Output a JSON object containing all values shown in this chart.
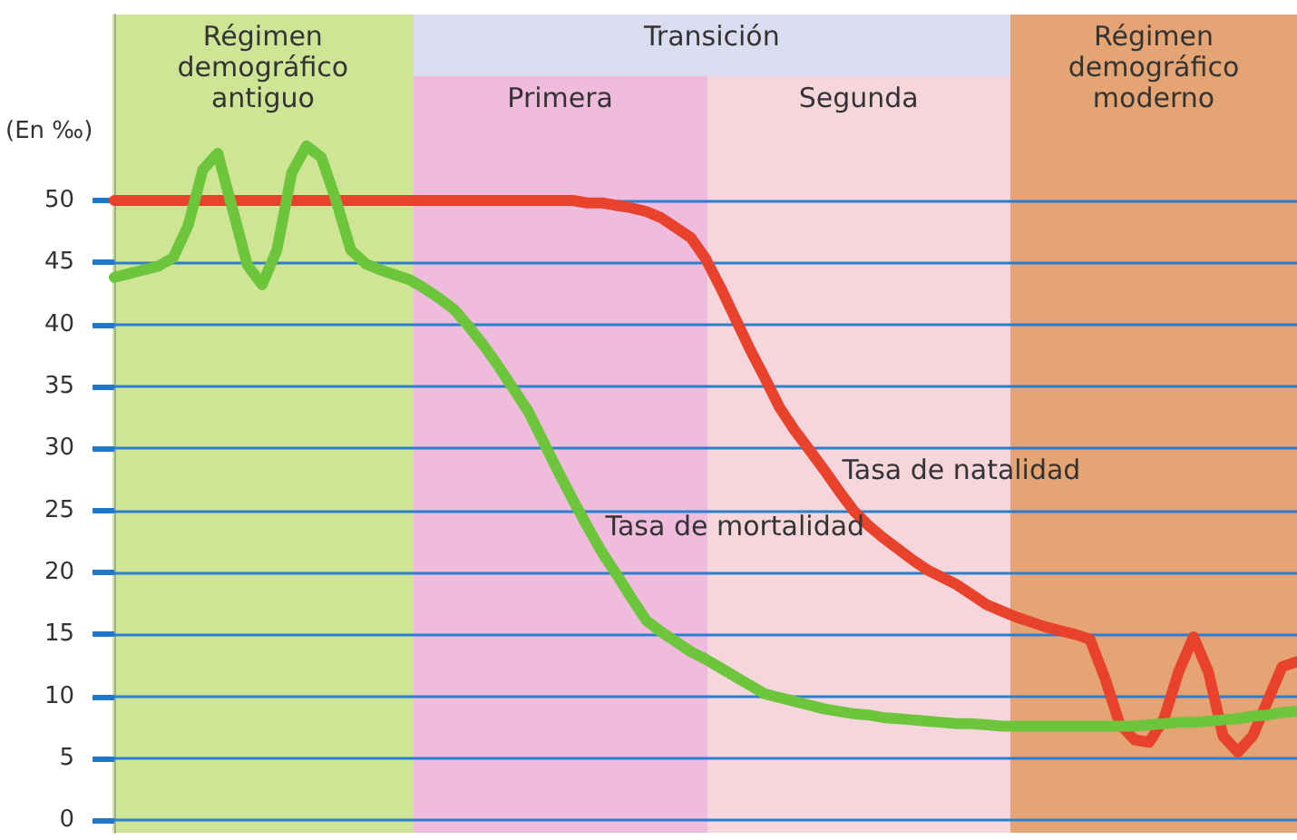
{
  "chart_data": {
    "type": "line",
    "ylabel": "(En ‰)",
    "ylim": [
      -1,
      65
    ],
    "yticks": [
      0,
      5,
      10,
      15,
      20,
      25,
      30,
      35,
      40,
      45,
      50
    ],
    "grid": "y",
    "tick_labels": "y",
    "marker": "none",
    "line_style": "solid",
    "annotations": [
      "Régimen\ndemográfico\nantiguo",
      "Transición",
      "Primera",
      "Segunda",
      "Régimen\ndemográfico\nmoderno"
    ],
    "categories": [
      null,
      null,
      null,
      null,
      null,
      null,
      null,
      null,
      null,
      null,
      null,
      null,
      null,
      null,
      null,
      null,
      null,
      null,
      null,
      null,
      null,
      null,
      null,
      null,
      null,
      null,
      null,
      null,
      null,
      null,
      null,
      null,
      null,
      null,
      null,
      null,
      null,
      null,
      null,
      null,
      null,
      null,
      null,
      null,
      null,
      null,
      null,
      null,
      null,
      null,
      null,
      null,
      null,
      null,
      null,
      null,
      null,
      null,
      null,
      null,
      null,
      null,
      null,
      null,
      null,
      null,
      null,
      null,
      null,
      null,
      null,
      null,
      null,
      null,
      null,
      null,
      null,
      null,
      null,
      null,
      null
    ],
    "series": [
      {
        "name": "Tasa de natalidad",
        "color": "#e8412c",
        "values": [
          50,
          50,
          50,
          50,
          50,
          50,
          50,
          50,
          50,
          50,
          50,
          50,
          50,
          50,
          50,
          50,
          50,
          50,
          50,
          50,
          50,
          50,
          50,
          50,
          50,
          50,
          50,
          50,
          50,
          50,
          50,
          50,
          49.8,
          49.8,
          49.6,
          49.4,
          49.1,
          48.6,
          47.8,
          47,
          45.3,
          43,
          40.5,
          38,
          35.7,
          33.3,
          31.5,
          29.9,
          28.3,
          26.6,
          25,
          23.8,
          22.8,
          21.9,
          21,
          20.2,
          19.6,
          19,
          18.2,
          17.4,
          16.9,
          16.4,
          16,
          15.6,
          15.3,
          15,
          14.6,
          11.5,
          7.8,
          6.5,
          6.3,
          8.2,
          12,
          14.8,
          12,
          6.8,
          5.5,
          6.8,
          9.6,
          12.4,
          12.8
        ]
      },
      {
        "name": "Tasa de mortalidad",
        "color": "#6cc53a",
        "values": [
          43.8,
          44.1,
          44.4,
          44.7,
          45.4,
          48,
          52.5,
          53.8,
          49.3,
          44.8,
          43.2,
          46,
          52.2,
          54.4,
          53.5,
          50,
          46,
          44.9,
          44.4,
          44,
          43.6,
          42.9,
          42.1,
          41.2,
          39.8,
          38.3,
          36.6,
          34.8,
          33,
          30.6,
          28.2,
          25.9,
          23.7,
          21.6,
          19.8,
          17.9,
          16.1,
          15.2,
          14.4,
          13.6,
          13,
          12.3,
          11.6,
          10.9,
          10.2,
          9.9,
          9.6,
          9.3,
          9,
          8.8,
          8.6,
          8.5,
          8.3,
          8.2,
          8.1,
          8,
          7.9,
          7.8,
          7.8,
          7.7,
          7.6,
          7.6,
          7.6,
          7.6,
          7.6,
          7.6,
          7.6,
          7.6,
          7.6,
          7.6,
          7.7,
          7.8,
          7.9,
          7.9,
          8,
          8.1,
          8.2,
          8.4,
          8.5,
          8.7,
          8.8
        ]
      }
    ]
  }
}
